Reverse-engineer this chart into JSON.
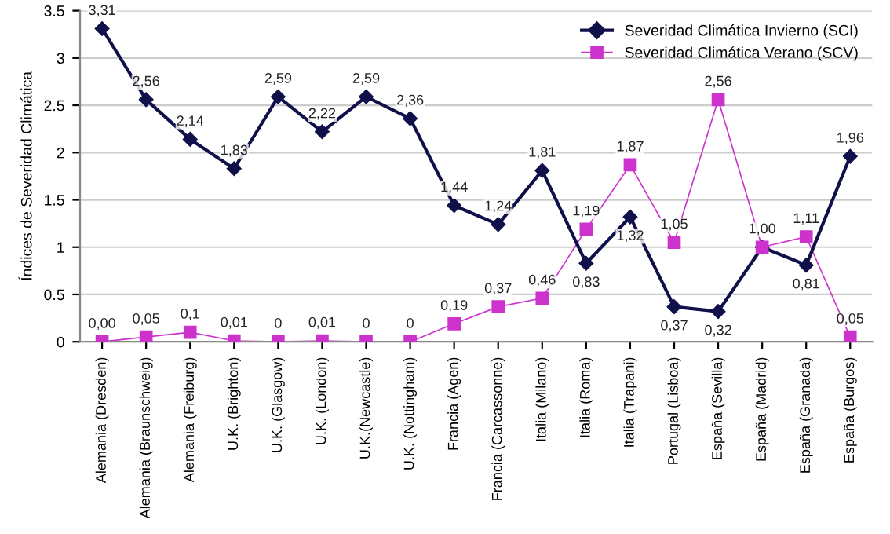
{
  "chart_data": {
    "type": "line",
    "ylabel": "Índices de Severidad Climática",
    "categories": [
      "Alemania (Dresden)",
      "Alemania (Braunschweig)",
      "Alemania (Freiburg)",
      "U.K. (Brighton)",
      "U.K. (Glasgow)",
      "U.K. (London)",
      "U.K.(Newcastle)",
      "U.K. (Nottingham)",
      "Francia (Agen)",
      "Francia (Carcassonne)",
      "Italia (Milano)",
      "Italia (Roma)",
      "Italia (Trapani)",
      "Portugal (Lisboa)",
      "España (Sevilla)",
      "España (Madrid)",
      "España (Granada)",
      "España (Burgos)"
    ],
    "series": [
      {
        "name": "Severidad Climática Invierno (SCI)",
        "color": "#10104a",
        "marker": "diamond",
        "values": [
          3.31,
          2.56,
          2.14,
          1.83,
          2.59,
          2.22,
          2.59,
          2.36,
          1.44,
          1.24,
          1.81,
          0.83,
          1.32,
          0.37,
          0.32,
          1.0,
          0.81,
          1.96
        ],
        "value_labels": [
          "3,31",
          "2,56",
          "2,14",
          "1,83",
          "2,59",
          "2,22",
          "2,59",
          "2,36",
          "1,44",
          "1,24",
          "1,81",
          "0,83",
          "1,32",
          "0,37",
          "0,32",
          "1,00",
          "0,81",
          "1,96"
        ]
      },
      {
        "name": "Severidad Climática Verano (SCV)",
        "color": "#cc33cc",
        "marker": "square",
        "values": [
          0.0,
          0.05,
          0.1,
          0.01,
          0,
          0.01,
          0,
          0,
          0.19,
          0.37,
          0.46,
          1.19,
          1.87,
          1.05,
          2.56,
          1.0,
          1.11,
          0.05
        ],
        "value_labels": [
          "0,00",
          "0,05",
          "0,1",
          "0,01",
          "0",
          "0,01",
          "0",
          "0",
          "0,19",
          "0,37",
          "0,46",
          "1,19",
          "1,87",
          "1,05",
          "2,56",
          null,
          "1,11",
          "0,05"
        ]
      }
    ],
    "ylim": [
      0,
      3.5
    ],
    "yticks": [
      0,
      0.5,
      1,
      1.5,
      2,
      2.5,
      3,
      3.5
    ],
    "grid": "y",
    "legend": "top right"
  }
}
